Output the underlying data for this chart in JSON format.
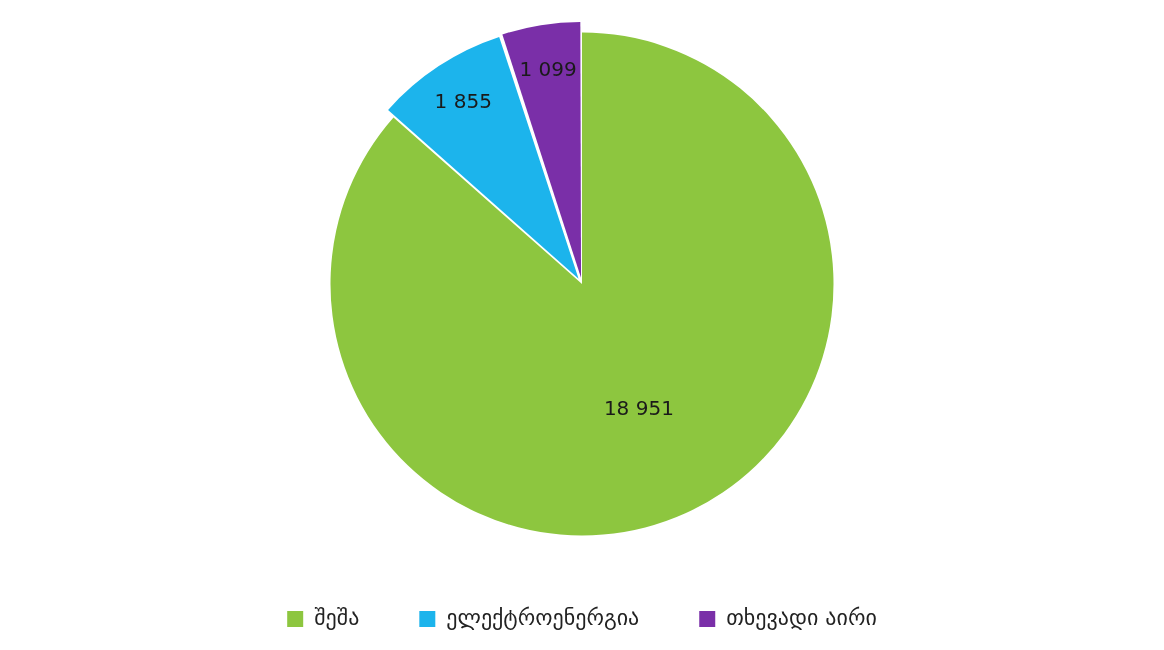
{
  "chart_data": {
    "type": "pie",
    "categories": [
      "შეშა",
      "ელექტროენერგია",
      "თხევადი აირი"
    ],
    "values": [
      18951,
      1855,
      1099
    ],
    "colors": [
      "#8dc63f",
      "#1cb4ec",
      "#7a2fa8"
    ],
    "value_labels": [
      "18 951",
      "1 855",
      "1 099"
    ],
    "legend": "bottom"
  }
}
